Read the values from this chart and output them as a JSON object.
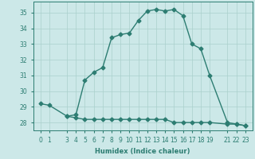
{
  "title": "",
  "xlabel": "Humidex (Indice chaleur)",
  "background_color": "#cce8e8",
  "line_color": "#2d7d72",
  "marker": "D",
  "marker_size": 2.5,
  "line_width": 1.0,
  "x_upper": [
    0,
    1,
    3,
    4,
    5,
    6,
    7,
    8,
    9,
    10,
    11,
    12,
    13,
    14,
    15,
    16,
    17,
    18,
    19,
    21,
    22,
    23
  ],
  "y_upper": [
    29.2,
    29.1,
    28.4,
    28.5,
    30.7,
    31.2,
    31.5,
    33.4,
    33.6,
    33.7,
    34.5,
    35.1,
    35.2,
    35.1,
    35.2,
    34.8,
    33.0,
    32.7,
    31.0,
    28.0,
    27.9,
    27.8
  ],
  "x_lower": [
    3,
    4,
    5,
    6,
    7,
    8,
    9,
    10,
    11,
    12,
    13,
    14,
    15,
    16,
    17,
    18,
    19,
    21,
    22,
    23
  ],
  "y_lower": [
    28.4,
    28.3,
    28.2,
    28.2,
    28.2,
    28.2,
    28.2,
    28.2,
    28.2,
    28.2,
    28.2,
    28.2,
    28.0,
    28.0,
    28.0,
    28.0,
    28.0,
    27.9,
    27.9,
    27.8
  ],
  "ylim": [
    27.5,
    35.7
  ],
  "yticks": [
    28,
    29,
    30,
    31,
    32,
    33,
    34,
    35
  ],
  "xticks": [
    0,
    1,
    3,
    4,
    5,
    6,
    7,
    8,
    9,
    10,
    11,
    12,
    13,
    14,
    15,
    16,
    17,
    18,
    19,
    21,
    22,
    23
  ],
  "grid_color": "#aad0cc",
  "axis_fontsize": 6.0,
  "tick_fontsize": 5.5,
  "xlim": [
    -0.8,
    23.8
  ]
}
